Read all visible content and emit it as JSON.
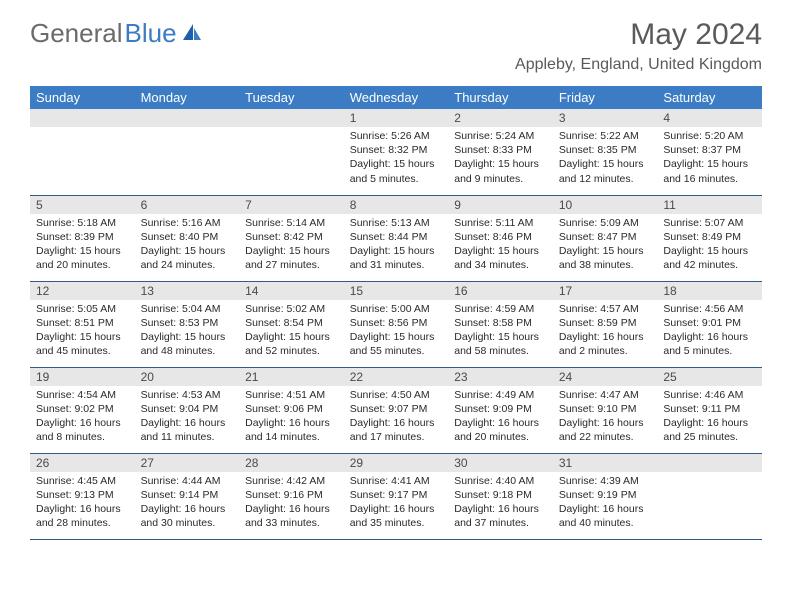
{
  "logo": {
    "text_gray": "General",
    "text_blue": "Blue"
  },
  "title": "May 2024",
  "location": "Appleby, England, United Kingdom",
  "colors": {
    "header_bg": "#3b7cc4",
    "header_text": "#ffffff",
    "daynum_bg": "#e7e7e7",
    "border": "#2f5a8a",
    "text": "#2a2a2a",
    "title_text": "#5a5a5a"
  },
  "weekdays": [
    "Sunday",
    "Monday",
    "Tuesday",
    "Wednesday",
    "Thursday",
    "Friday",
    "Saturday"
  ],
  "weeks": [
    [
      {
        "n": "",
        "sr": "",
        "ss": "",
        "dl": ""
      },
      {
        "n": "",
        "sr": "",
        "ss": "",
        "dl": ""
      },
      {
        "n": "",
        "sr": "",
        "ss": "",
        "dl": ""
      },
      {
        "n": "1",
        "sr": "Sunrise: 5:26 AM",
        "ss": "Sunset: 8:32 PM",
        "dl": "Daylight: 15 hours and 5 minutes."
      },
      {
        "n": "2",
        "sr": "Sunrise: 5:24 AM",
        "ss": "Sunset: 8:33 PM",
        "dl": "Daylight: 15 hours and 9 minutes."
      },
      {
        "n": "3",
        "sr": "Sunrise: 5:22 AM",
        "ss": "Sunset: 8:35 PM",
        "dl": "Daylight: 15 hours and 12 minutes."
      },
      {
        "n": "4",
        "sr": "Sunrise: 5:20 AM",
        "ss": "Sunset: 8:37 PM",
        "dl": "Daylight: 15 hours and 16 minutes."
      }
    ],
    [
      {
        "n": "5",
        "sr": "Sunrise: 5:18 AM",
        "ss": "Sunset: 8:39 PM",
        "dl": "Daylight: 15 hours and 20 minutes."
      },
      {
        "n": "6",
        "sr": "Sunrise: 5:16 AM",
        "ss": "Sunset: 8:40 PM",
        "dl": "Daylight: 15 hours and 24 minutes."
      },
      {
        "n": "7",
        "sr": "Sunrise: 5:14 AM",
        "ss": "Sunset: 8:42 PM",
        "dl": "Daylight: 15 hours and 27 minutes."
      },
      {
        "n": "8",
        "sr": "Sunrise: 5:13 AM",
        "ss": "Sunset: 8:44 PM",
        "dl": "Daylight: 15 hours and 31 minutes."
      },
      {
        "n": "9",
        "sr": "Sunrise: 5:11 AM",
        "ss": "Sunset: 8:46 PM",
        "dl": "Daylight: 15 hours and 34 minutes."
      },
      {
        "n": "10",
        "sr": "Sunrise: 5:09 AM",
        "ss": "Sunset: 8:47 PM",
        "dl": "Daylight: 15 hours and 38 minutes."
      },
      {
        "n": "11",
        "sr": "Sunrise: 5:07 AM",
        "ss": "Sunset: 8:49 PM",
        "dl": "Daylight: 15 hours and 42 minutes."
      }
    ],
    [
      {
        "n": "12",
        "sr": "Sunrise: 5:05 AM",
        "ss": "Sunset: 8:51 PM",
        "dl": "Daylight: 15 hours and 45 minutes."
      },
      {
        "n": "13",
        "sr": "Sunrise: 5:04 AM",
        "ss": "Sunset: 8:53 PM",
        "dl": "Daylight: 15 hours and 48 minutes."
      },
      {
        "n": "14",
        "sr": "Sunrise: 5:02 AM",
        "ss": "Sunset: 8:54 PM",
        "dl": "Daylight: 15 hours and 52 minutes."
      },
      {
        "n": "15",
        "sr": "Sunrise: 5:00 AM",
        "ss": "Sunset: 8:56 PM",
        "dl": "Daylight: 15 hours and 55 minutes."
      },
      {
        "n": "16",
        "sr": "Sunrise: 4:59 AM",
        "ss": "Sunset: 8:58 PM",
        "dl": "Daylight: 15 hours and 58 minutes."
      },
      {
        "n": "17",
        "sr": "Sunrise: 4:57 AM",
        "ss": "Sunset: 8:59 PM",
        "dl": "Daylight: 16 hours and 2 minutes."
      },
      {
        "n": "18",
        "sr": "Sunrise: 4:56 AM",
        "ss": "Sunset: 9:01 PM",
        "dl": "Daylight: 16 hours and 5 minutes."
      }
    ],
    [
      {
        "n": "19",
        "sr": "Sunrise: 4:54 AM",
        "ss": "Sunset: 9:02 PM",
        "dl": "Daylight: 16 hours and 8 minutes."
      },
      {
        "n": "20",
        "sr": "Sunrise: 4:53 AM",
        "ss": "Sunset: 9:04 PM",
        "dl": "Daylight: 16 hours and 11 minutes."
      },
      {
        "n": "21",
        "sr": "Sunrise: 4:51 AM",
        "ss": "Sunset: 9:06 PM",
        "dl": "Daylight: 16 hours and 14 minutes."
      },
      {
        "n": "22",
        "sr": "Sunrise: 4:50 AM",
        "ss": "Sunset: 9:07 PM",
        "dl": "Daylight: 16 hours and 17 minutes."
      },
      {
        "n": "23",
        "sr": "Sunrise: 4:49 AM",
        "ss": "Sunset: 9:09 PM",
        "dl": "Daylight: 16 hours and 20 minutes."
      },
      {
        "n": "24",
        "sr": "Sunrise: 4:47 AM",
        "ss": "Sunset: 9:10 PM",
        "dl": "Daylight: 16 hours and 22 minutes."
      },
      {
        "n": "25",
        "sr": "Sunrise: 4:46 AM",
        "ss": "Sunset: 9:11 PM",
        "dl": "Daylight: 16 hours and 25 minutes."
      }
    ],
    [
      {
        "n": "26",
        "sr": "Sunrise: 4:45 AM",
        "ss": "Sunset: 9:13 PM",
        "dl": "Daylight: 16 hours and 28 minutes."
      },
      {
        "n": "27",
        "sr": "Sunrise: 4:44 AM",
        "ss": "Sunset: 9:14 PM",
        "dl": "Daylight: 16 hours and 30 minutes."
      },
      {
        "n": "28",
        "sr": "Sunrise: 4:42 AM",
        "ss": "Sunset: 9:16 PM",
        "dl": "Daylight: 16 hours and 33 minutes."
      },
      {
        "n": "29",
        "sr": "Sunrise: 4:41 AM",
        "ss": "Sunset: 9:17 PM",
        "dl": "Daylight: 16 hours and 35 minutes."
      },
      {
        "n": "30",
        "sr": "Sunrise: 4:40 AM",
        "ss": "Sunset: 9:18 PM",
        "dl": "Daylight: 16 hours and 37 minutes."
      },
      {
        "n": "31",
        "sr": "Sunrise: 4:39 AM",
        "ss": "Sunset: 9:19 PM",
        "dl": "Daylight: 16 hours and 40 minutes."
      },
      {
        "n": "",
        "sr": "",
        "ss": "",
        "dl": ""
      }
    ]
  ]
}
